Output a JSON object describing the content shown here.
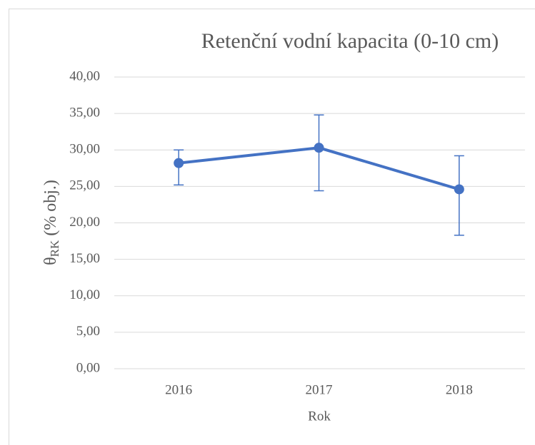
{
  "chart_data": {
    "type": "line",
    "title": "Retenční vodní kapacita (0-10 cm)",
    "x_label": "Rok",
    "y_label": {
      "symbol": "θ",
      "subscript": "RK",
      "text": "(% obj.)"
    },
    "categories": [
      "2016",
      "2017",
      "2018"
    ],
    "series": [
      {
        "color": "#4472c4",
        "values": [
          28.2,
          30.3,
          24.6
        ],
        "errors_plus": [
          1.8,
          4.5,
          4.6
        ],
        "errors_minus": [
          3.0,
          5.9,
          6.3
        ]
      }
    ],
    "ylim": [
      0,
      40
    ],
    "yticks": [
      {
        "value": 0,
        "label": "0,00"
      },
      {
        "value": 5,
        "label": "5,00"
      },
      {
        "value": 10,
        "label": "10,00"
      },
      {
        "value": 15,
        "label": "15,00"
      },
      {
        "value": 20,
        "label": "20,00"
      },
      {
        "value": 25,
        "label": "25,00"
      },
      {
        "value": 30,
        "label": "30,00"
      },
      {
        "value": 35,
        "label": "35,00"
      },
      {
        "value": 40,
        "label": "40,00"
      }
    ],
    "grid": true
  }
}
